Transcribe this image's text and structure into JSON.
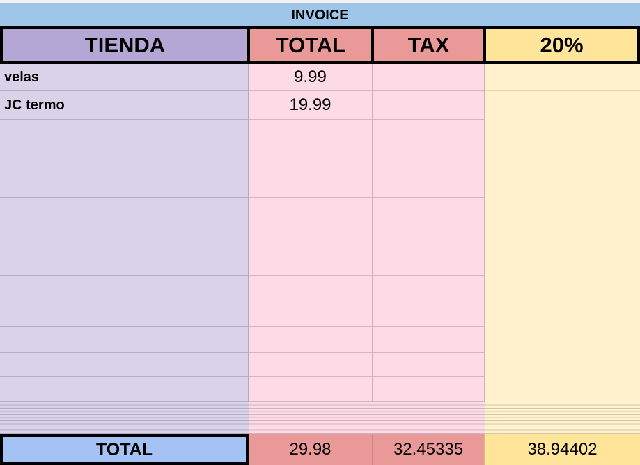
{
  "title": "INVOICE",
  "headers": {
    "store": "TIENDA",
    "total": "TOTAL",
    "tax": "TAX",
    "rate": "20%"
  },
  "rows": [
    {
      "store": "velas",
      "total": "9.99"
    },
    {
      "store": "JC termo",
      "total": "19.99"
    }
  ],
  "footer": {
    "label": "TOTAL",
    "total": "29.98",
    "tax": "32.45335",
    "rate": "38.94402"
  },
  "colors": {
    "title_bg": "#9fc5e8",
    "store_header": "#b4a7d6",
    "total_header": "#ea9999",
    "rate_header": "#ffe599",
    "footer_label": "#a4c2f4"
  }
}
